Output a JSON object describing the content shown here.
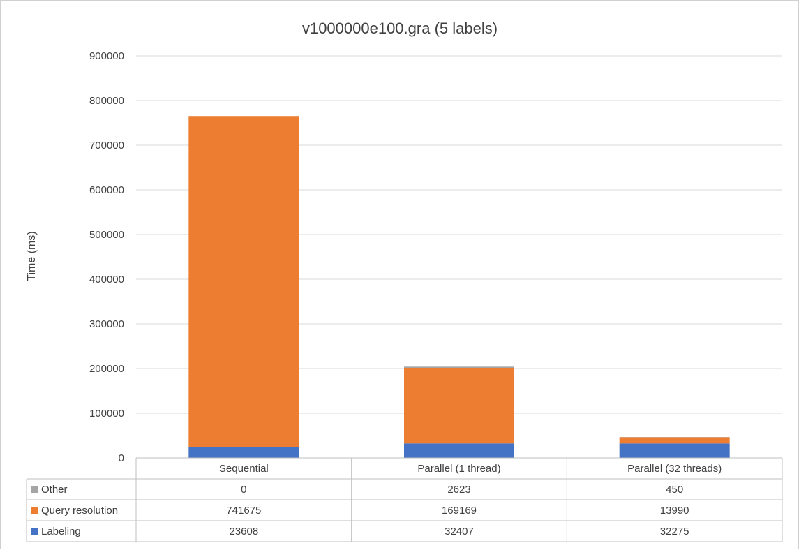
{
  "chart_data": {
    "type": "bar",
    "stacked": true,
    "title": "v1000000e100.gra (5 labels)",
    "ylabel": "Time (ms)",
    "xlabel": "",
    "ylim": [
      0,
      900000
    ],
    "yticks": [
      "0",
      "100000",
      "200000",
      "300000",
      "400000",
      "500000",
      "600000",
      "700000",
      "800000",
      "900000"
    ],
    "grid": true,
    "legend": "data-table",
    "categories": [
      "Sequential",
      "Parallel (1 thread)",
      "Parallel (32 threads)"
    ],
    "series": [
      {
        "name": "Other",
        "color": "#a5a5a5",
        "values": [
          0,
          2623,
          450
        ]
      },
      {
        "name": "Query resolution",
        "color": "#ed7d31",
        "values": [
          741675,
          169169,
          13990
        ]
      },
      {
        "name": "Labeling",
        "color": "#4472c4",
        "values": [
          23608,
          32407,
          32275
        ]
      }
    ]
  }
}
